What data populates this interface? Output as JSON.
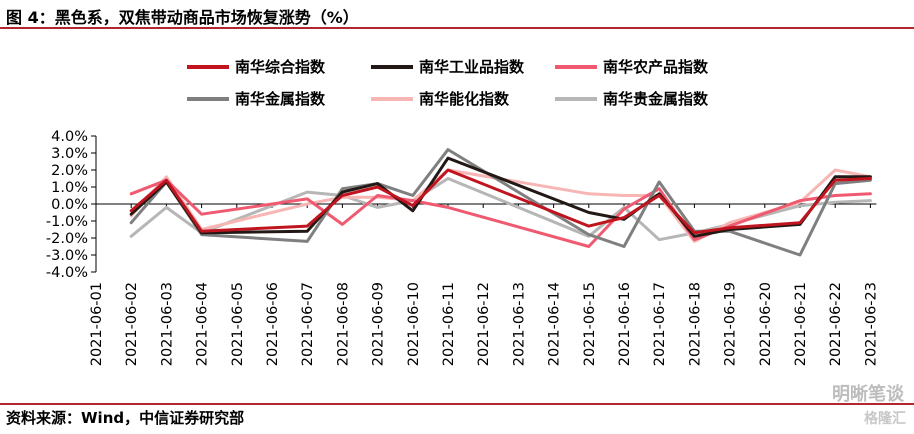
{
  "header": {
    "title": "图 4：黑色系，双焦带动商品市场恢复涨势（%）"
  },
  "footer": {
    "source": "资料来源：Wind，中信证券研究部",
    "watermark": "明晰笔谈",
    "watermark2": "格隆汇"
  },
  "chart_data": {
    "type": "line",
    "title": "图 4：黑色系，双焦带动商品市场恢复涨势（%）",
    "xlabel": "",
    "ylabel": "",
    "ylim": [
      -4.0,
      4.0
    ],
    "y_ticks": [
      "4.0%",
      "3.0%",
      "2.0%",
      "1.0%",
      "0.0%",
      "-1.0%",
      "-2.0%",
      "-3.0%",
      "-4.0%"
    ],
    "grid": false,
    "legend_position": "top",
    "categories": [
      "2021-06-01",
      "2021-06-02",
      "2021-06-03",
      "2021-06-04",
      "2021-06-05",
      "2021-06-06",
      "2021-06-07",
      "2021-06-08",
      "2021-06-09",
      "2021-06-10",
      "2021-06-11",
      "2021-06-12",
      "2021-06-13",
      "2021-06-14",
      "2021-06-15",
      "2021-06-16",
      "2021-06-17",
      "2021-06-18",
      "2021-06-19",
      "2021-06-20",
      "2021-06-21",
      "2021-06-22",
      "2021-06-23"
    ],
    "series": [
      {
        "name": "南华综合指数",
        "color": "#c0141f",
        "values": [
          null,
          -0.4,
          1.4,
          -1.6,
          null,
          null,
          -1.3,
          0.5,
          1.0,
          -0.1,
          2.0,
          null,
          null,
          null,
          -1.3,
          -0.8,
          0.5,
          -1.7,
          -1.4,
          null,
          -1.1,
          1.4,
          1.5
        ]
      },
      {
        "name": "南华工业品指数",
        "color": "#221815",
        "values": [
          null,
          -0.6,
          1.3,
          -1.7,
          null,
          null,
          -1.6,
          0.7,
          1.2,
          -0.4,
          2.7,
          null,
          null,
          null,
          -0.5,
          -0.9,
          0.6,
          -1.9,
          -1.5,
          null,
          -1.2,
          1.6,
          1.6
        ]
      },
      {
        "name": "南华农产品指数",
        "color": "#f05a71",
        "values": [
          null,
          0.6,
          1.4,
          -0.6,
          null,
          null,
          0.3,
          -1.2,
          0.5,
          0.2,
          -0.2,
          null,
          null,
          null,
          -2.5,
          -0.3,
          0.9,
          -2.1,
          -1.3,
          null,
          0.2,
          0.5,
          0.6
        ]
      },
      {
        "name": "南华金属指数",
        "color": "#7f7f7f",
        "values": [
          null,
          -1.1,
          1.3,
          -1.8,
          null,
          null,
          -2.2,
          0.9,
          1.2,
          0.5,
          3.2,
          null,
          null,
          null,
          -1.8,
          -2.5,
          1.3,
          -1.6,
          -1.6,
          null,
          -3.0,
          1.2,
          1.4
        ]
      },
      {
        "name": "南华能化指数",
        "color": "#f7b6b3",
        "values": [
          null,
          -0.7,
          1.6,
          -1.5,
          null,
          null,
          0.0,
          0.4,
          0.4,
          0.2,
          2.0,
          null,
          null,
          null,
          0.6,
          0.5,
          0.5,
          -2.2,
          -1.1,
          null,
          0.1,
          2.0,
          1.6
        ]
      },
      {
        "name": "南华贵金属指数",
        "color": "#b6b6b6",
        "values": [
          null,
          -1.9,
          -0.2,
          -1.7,
          null,
          null,
          0.7,
          0.5,
          -0.2,
          0.2,
          1.5,
          null,
          null,
          null,
          -1.9,
          -0.2,
          -2.1,
          -1.7,
          -1.2,
          null,
          -0.1,
          0.1,
          0.2
        ]
      }
    ]
  }
}
